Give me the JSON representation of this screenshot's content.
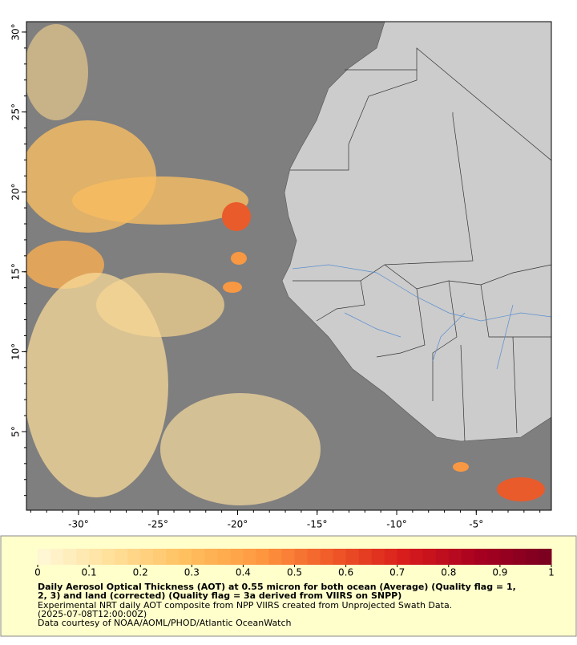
{
  "map": {
    "xlim": [
      -33.27,
      -0.28
    ],
    "ylim": [
      0.08,
      30.65
    ],
    "xticks": [
      {
        "value": -30,
        "label": "-30°"
      },
      {
        "value": -25,
        "label": "-25°"
      },
      {
        "value": -20,
        "label": "-20°"
      },
      {
        "value": -15,
        "label": "-15°"
      },
      {
        "value": -10,
        "label": "-10°"
      },
      {
        "value": -5,
        "label": "-5°"
      }
    ],
    "yticks": [
      {
        "value": 5,
        "label": "5°"
      },
      {
        "value": 10,
        "label": "10°"
      },
      {
        "value": 15,
        "label": "15°"
      },
      {
        "value": 20,
        "label": "20°"
      },
      {
        "value": 25,
        "label": "25°"
      },
      {
        "value": 30,
        "label": "30°"
      }
    ]
  },
  "colorbar": {
    "range": [
      0,
      1
    ],
    "ticks": [
      0,
      0.1,
      0.2,
      0.3,
      0.4,
      0.5,
      0.6,
      0.7,
      0.8,
      0.9,
      1
    ],
    "colormap": [
      "#fff8d8",
      "#ffe09a",
      "#ffc060",
      "#ff9a40",
      "#f05a28",
      "#d81c1c",
      "#a80020",
      "#780020"
    ]
  },
  "caption": {
    "bold_lines": [
      "Daily Aerosol Optical Thickness (AOT) at 0.55 micron for both ocean (Average) (Quality flag = 1,",
      "2, 3) and land (corrected) (Quality flag = 3a derived from VIIRS on SNPP)"
    ],
    "lines": [
      "Experimental NRT daily AOT composite from NPP VIIRS created from Unprojected Swath Data.",
      "(2025-07-08T12:00:00Z)",
      "Data courtesy of NOAA/AOML/PHOD/Atlantic OceanWatch"
    ]
  }
}
